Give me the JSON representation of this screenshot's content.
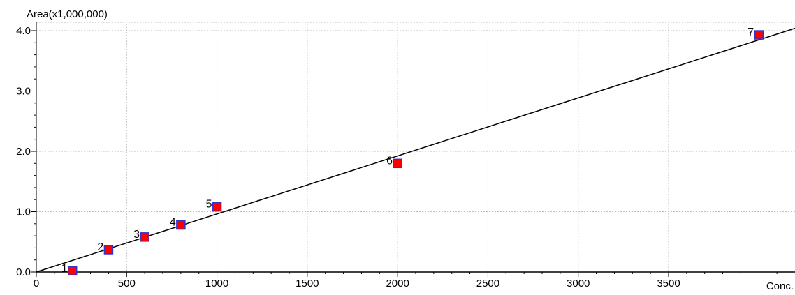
{
  "chart_data": {
    "type": "scatter",
    "ylabel": "Area(x1,000,000)",
    "xlabel": "Conc.",
    "xlim": [
      0,
      4200
    ],
    "ylim": [
      0,
      4.0
    ],
    "x_ticks": [
      0,
      500,
      1000,
      1500,
      2000,
      2500,
      3000,
      3500
    ],
    "x_tick_labels": [
      "0",
      "500",
      "1000",
      "1500",
      "2000",
      "2500",
      "3000",
      "3500"
    ],
    "y_ticks": [
      0,
      1,
      2,
      3,
      4
    ],
    "y_tick_labels": [
      "0.0",
      "1.0",
      "2.0",
      "3.0",
      "4.0"
    ],
    "grid": true,
    "points": [
      {
        "label": "1",
        "x": 200,
        "y": 0.02
      },
      {
        "label": "2",
        "x": 400,
        "y": 0.37
      },
      {
        "label": "3",
        "x": 600,
        "y": 0.58
      },
      {
        "label": "4",
        "x": 800,
        "y": 0.78
      },
      {
        "label": "5",
        "x": 1000,
        "y": 1.08
      },
      {
        "label": "6",
        "x": 2000,
        "y": 1.8
      },
      {
        "label": "7",
        "x": 4000,
        "y": 3.93
      }
    ],
    "fit_line": {
      "x": [
        0,
        4200
      ],
      "y": [
        0,
        4.04
      ]
    },
    "colors": {
      "marker_fill": "#ff0000",
      "marker_edge": "#3333cc",
      "line": "#000000",
      "grid": "#bbbbbb"
    }
  }
}
